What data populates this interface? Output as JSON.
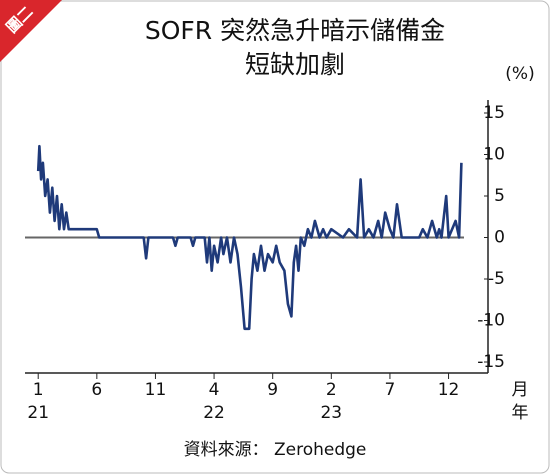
{
  "badge": "圖二",
  "chart_data": {
    "type": "line",
    "title_lines": [
      "SOFR 突然急升暗示儲備金",
      "短缺加劇"
    ],
    "y_unit": "(%)",
    "x_unit_month": "月",
    "x_unit_year": "年",
    "source": "資料來源： Zerohedge",
    "xlim": [
      -0.7,
      37
    ],
    "ylim": [
      -15,
      15
    ],
    "yticks": [
      15,
      10,
      5,
      0,
      -5,
      -10,
      -15
    ],
    "xticks": [
      {
        "value": 0,
        "label": "1"
      },
      {
        "value": 5,
        "label": "6"
      },
      {
        "value": 10,
        "label": "11"
      },
      {
        "value": 15,
        "label": "4"
      },
      {
        "value": 20,
        "label": "9"
      },
      {
        "value": 25,
        "label": "2"
      },
      {
        "value": 30,
        "label": "7"
      },
      {
        "value": 35,
        "label": "12"
      }
    ],
    "year_ticks": [
      {
        "value": 0,
        "label": "21"
      },
      {
        "value": 15,
        "label": "22"
      },
      {
        "value": 25,
        "label": "23"
      }
    ],
    "zero_line_color": "#666666",
    "series": [
      {
        "name": "SOFR",
        "color": "#1f3a7a",
        "x": [
          0,
          0.1,
          0.25,
          0.4,
          0.6,
          0.8,
          1.0,
          1.2,
          1.4,
          1.6,
          1.8,
          2.0,
          2.2,
          2.4,
          2.6,
          5.0,
          5.2,
          9.0,
          9.2,
          9.4,
          11.5,
          11.7,
          11.9,
          13,
          13.2,
          13.4,
          14.2,
          14.4,
          14.6,
          14.8,
          15.0,
          15.3,
          15.6,
          15.8,
          16.1,
          16.4,
          16.7,
          17,
          17.3,
          17.6,
          18,
          18.2,
          18.4,
          18.7,
          19,
          19.3,
          19.6,
          20,
          20.3,
          20.6,
          21,
          21.3,
          21.6,
          21.8,
          22,
          22.2,
          22.4,
          22.7,
          23,
          23.3,
          23.6,
          24,
          24.3,
          24.6,
          25,
          26,
          26.5,
          27.2,
          27.5,
          27.8,
          28.2,
          28.6,
          29,
          29.3,
          29.6,
          30,
          30.3,
          30.6,
          31,
          32.5,
          32.8,
          33.2,
          33.6,
          34,
          34.2,
          34.4,
          34.8,
          35,
          35.3,
          35.6,
          35.9,
          36.1
        ],
        "values": [
          8,
          11,
          7,
          9,
          5,
          7,
          3,
          6,
          2,
          5,
          1,
          4,
          1,
          3,
          1,
          1,
          0,
          0,
          -2.5,
          0,
          0,
          -1,
          0,
          0,
          -1,
          0,
          0,
          -3,
          0,
          -4,
          -1,
          -3,
          0,
          -2,
          0,
          -3,
          0,
          -2,
          -6,
          -11,
          -11,
          -5,
          -2,
          -4,
          -1,
          -4,
          -2,
          -3,
          -1,
          -3,
          -4,
          -8,
          -9.5,
          -3,
          -1,
          -4,
          0,
          -1,
          1,
          0,
          2,
          0,
          1,
          0,
          1,
          0,
          1,
          0,
          7,
          0,
          1,
          0,
          2,
          0,
          3,
          1,
          0,
          4,
          0,
          0,
          1,
          0,
          2,
          0,
          1,
          0,
          5,
          0,
          1,
          2,
          0,
          9
        ]
      }
    ]
  }
}
